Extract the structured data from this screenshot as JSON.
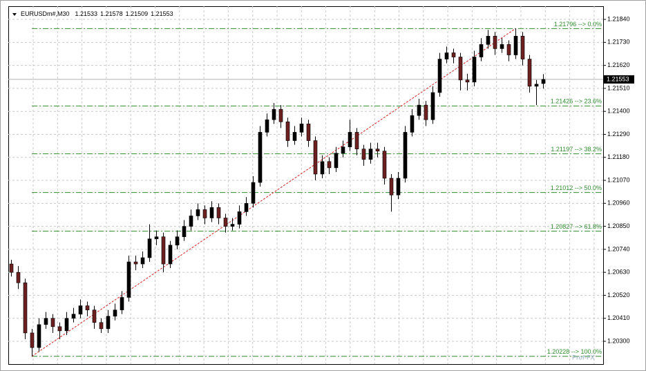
{
  "chart_data": {
    "type": "candlestick",
    "symbol": "EURUSDm#,M30",
    "ylim": [
      1.20191,
      1.21903
    ],
    "yticks": [
      {
        "value": 1.2184,
        "label": "1.21840"
      },
      {
        "value": 1.2173,
        "label": "1.21730"
      },
      {
        "value": 1.2162,
        "label": "1.21620"
      },
      {
        "value": 1.2151,
        "label": "1.21510"
      },
      {
        "value": 1.214,
        "label": "1.21400"
      },
      {
        "value": 1.2129,
        "label": "1.21290"
      },
      {
        "value": 1.2118,
        "label": "1.21180"
      },
      {
        "value": 1.2107,
        "label": "1.21070"
      },
      {
        "value": 1.2096,
        "label": "1.20960"
      },
      {
        "value": 1.2085,
        "label": "1.20850"
      },
      {
        "value": 1.2074,
        "label": "1.20740"
      },
      {
        "value": 1.2063,
        "label": "1.20630"
      },
      {
        "value": 1.2052,
        "label": "1.20520"
      },
      {
        "value": 1.2041,
        "label": "1.20410"
      },
      {
        "value": 1.203,
        "label": "1.20300"
      }
    ],
    "grid": true,
    "up_color": "#000000",
    "down_color": "#6e1f1f",
    "fib_color": "#2e8b2e",
    "trend_color": "#d62020",
    "fib_levels": [
      {
        "value": 1.21796,
        "label": "1.21796 --> 0.0%"
      },
      {
        "value": 1.21426,
        "label": "1.21426 --> 23.6%"
      },
      {
        "value": 1.21197,
        "label": "1.21197 --> 38.2%"
      },
      {
        "value": 1.21012,
        "label": "1.21012 --> 50.0%"
      },
      {
        "value": 1.20827,
        "label": "1.20827 --> 61.8%"
      },
      {
        "value": 1.20228,
        "label": "1.20228 --> 100.0%"
      }
    ],
    "watermark": "Prof-FX",
    "candles": [
      [
        1.2067,
        1.2069,
        1.2061,
        1.2063
      ],
      [
        1.2063,
        1.2066,
        1.2055,
        1.2058
      ],
      [
        1.2058,
        1.206,
        1.2031,
        1.2034
      ],
      [
        1.2034,
        1.2036,
        1.20228,
        1.2027
      ],
      [
        1.2027,
        1.2041,
        1.2025,
        1.2038
      ],
      [
        1.2038,
        1.2044,
        1.2036,
        1.2041
      ],
      [
        1.2041,
        1.2043,
        1.2034,
        1.2037
      ],
      [
        1.2037,
        1.2039,
        1.2031,
        1.2035
      ],
      [
        1.2035,
        1.2044,
        1.2033,
        1.2041
      ],
      [
        1.2041,
        1.2046,
        1.2039,
        1.2043
      ],
      [
        1.2043,
        1.205,
        1.2041,
        1.2047
      ],
      [
        1.2047,
        1.2049,
        1.2042,
        1.2045
      ],
      [
        1.2045,
        1.2047,
        1.2036,
        1.2039
      ],
      [
        1.2039,
        1.2041,
        1.2034,
        1.2036
      ],
      [
        1.2036,
        1.2045,
        1.2034,
        1.2042
      ],
      [
        1.2042,
        1.2048,
        1.204,
        1.2045
      ],
      [
        1.2045,
        1.2054,
        1.2043,
        1.2051
      ],
      [
        1.2051,
        1.2071,
        1.2049,
        1.2068
      ],
      [
        1.2068,
        1.2071,
        1.2064,
        1.2067
      ],
      [
        1.2067,
        1.2073,
        1.2065,
        1.207
      ],
      [
        1.207,
        1.2086,
        1.2068,
        1.2079
      ],
      [
        1.2079,
        1.2083,
        1.2076,
        1.208
      ],
      [
        1.208,
        1.2082,
        1.2063,
        1.2067
      ],
      [
        1.2067,
        1.2078,
        1.2065,
        1.2076
      ],
      [
        1.2076,
        1.2083,
        1.2074,
        1.208
      ],
      [
        1.208,
        1.2088,
        1.2078,
        1.2085
      ],
      [
        1.2085,
        1.2093,
        1.2083,
        1.209
      ],
      [
        1.209,
        1.2096,
        1.2088,
        1.2093
      ],
      [
        1.2093,
        1.2095,
        1.2086,
        1.2089
      ],
      [
        1.2089,
        1.2097,
        1.2087,
        1.2094
      ],
      [
        1.2094,
        1.2096,
        1.2086,
        1.2089
      ],
      [
        1.2089,
        1.2091,
        1.2082,
        1.2085
      ],
      [
        1.2085,
        1.2089,
        1.2083,
        1.2086
      ],
      [
        1.2086,
        1.2095,
        1.2084,
        1.2092
      ],
      [
        1.2092,
        1.2099,
        1.209,
        1.2096
      ],
      [
        1.2096,
        1.2109,
        1.2094,
        1.2106
      ],
      [
        1.2106,
        1.2133,
        1.2104,
        1.213
      ],
      [
        1.213,
        1.2139,
        1.2128,
        1.2136
      ],
      [
        1.2136,
        1.2144,
        1.2134,
        1.2141
      ],
      [
        1.2141,
        1.2143,
        1.2132,
        1.2135
      ],
      [
        1.2135,
        1.2137,
        1.2123,
        1.2126
      ],
      [
        1.2126,
        1.2133,
        1.2124,
        1.213
      ],
      [
        1.213,
        1.2137,
        1.2128,
        1.2134
      ],
      [
        1.2134,
        1.2136,
        1.2123,
        1.2126
      ],
      [
        1.2126,
        1.2128,
        1.2107,
        1.211
      ],
      [
        1.211,
        1.2119,
        1.2108,
        1.2116
      ],
      [
        1.2116,
        1.2118,
        1.211,
        1.2113
      ],
      [
        1.2113,
        1.2123,
        1.2111,
        1.212
      ],
      [
        1.212,
        1.2126,
        1.2118,
        1.2123
      ],
      [
        1.2123,
        1.2136,
        1.2121,
        1.213
      ],
      [
        1.213,
        1.2132,
        1.2119,
        1.2122
      ],
      [
        1.2122,
        1.2124,
        1.2114,
        1.2117
      ],
      [
        1.2117,
        1.2125,
        1.2115,
        1.2122
      ],
      [
        1.2122,
        1.2125,
        1.2118,
        1.2121
      ],
      [
        1.2121,
        1.2123,
        1.2105,
        1.2108
      ],
      [
        1.2108,
        1.211,
        1.2092,
        1.21
      ],
      [
        1.21,
        1.2111,
        1.2098,
        1.2108
      ],
      [
        1.2108,
        1.2133,
        1.2106,
        1.213
      ],
      [
        1.213,
        1.2141,
        1.2128,
        1.2138
      ],
      [
        1.2138,
        1.2146,
        1.2136,
        1.2143
      ],
      [
        1.2143,
        1.2145,
        1.2133,
        1.2136
      ],
      [
        1.2136,
        1.2152,
        1.2134,
        1.2149
      ],
      [
        1.2149,
        1.2168,
        1.2147,
        1.2165
      ],
      [
        1.2165,
        1.2171,
        1.2163,
        1.2168
      ],
      [
        1.2168,
        1.217,
        1.2163,
        1.2166
      ],
      [
        1.2166,
        1.2168,
        1.215,
        1.2155
      ],
      [
        1.2155,
        1.2158,
        1.215,
        1.2154
      ],
      [
        1.2154,
        1.2169,
        1.2152,
        1.2166
      ],
      [
        1.2166,
        1.2175,
        1.2164,
        1.2172
      ],
      [
        1.2172,
        1.2179,
        1.217,
        1.2176
      ],
      [
        1.2176,
        1.2178,
        1.2167,
        1.217
      ],
      [
        1.217,
        1.2175,
        1.2168,
        1.2172
      ],
      [
        1.2172,
        1.2174,
        1.2164,
        1.2167
      ],
      [
        1.2167,
        1.21796,
        1.2165,
        1.2176
      ],
      [
        1.2176,
        1.2178,
        1.2162,
        1.2165
      ],
      [
        1.2165,
        1.2167,
        1.2149,
        1.2152
      ],
      [
        1.2152,
        1.2155,
        1.2143,
        1.2153
      ],
      [
        1.21533,
        1.21578,
        1.21509,
        1.21553
      ]
    ]
  }
}
